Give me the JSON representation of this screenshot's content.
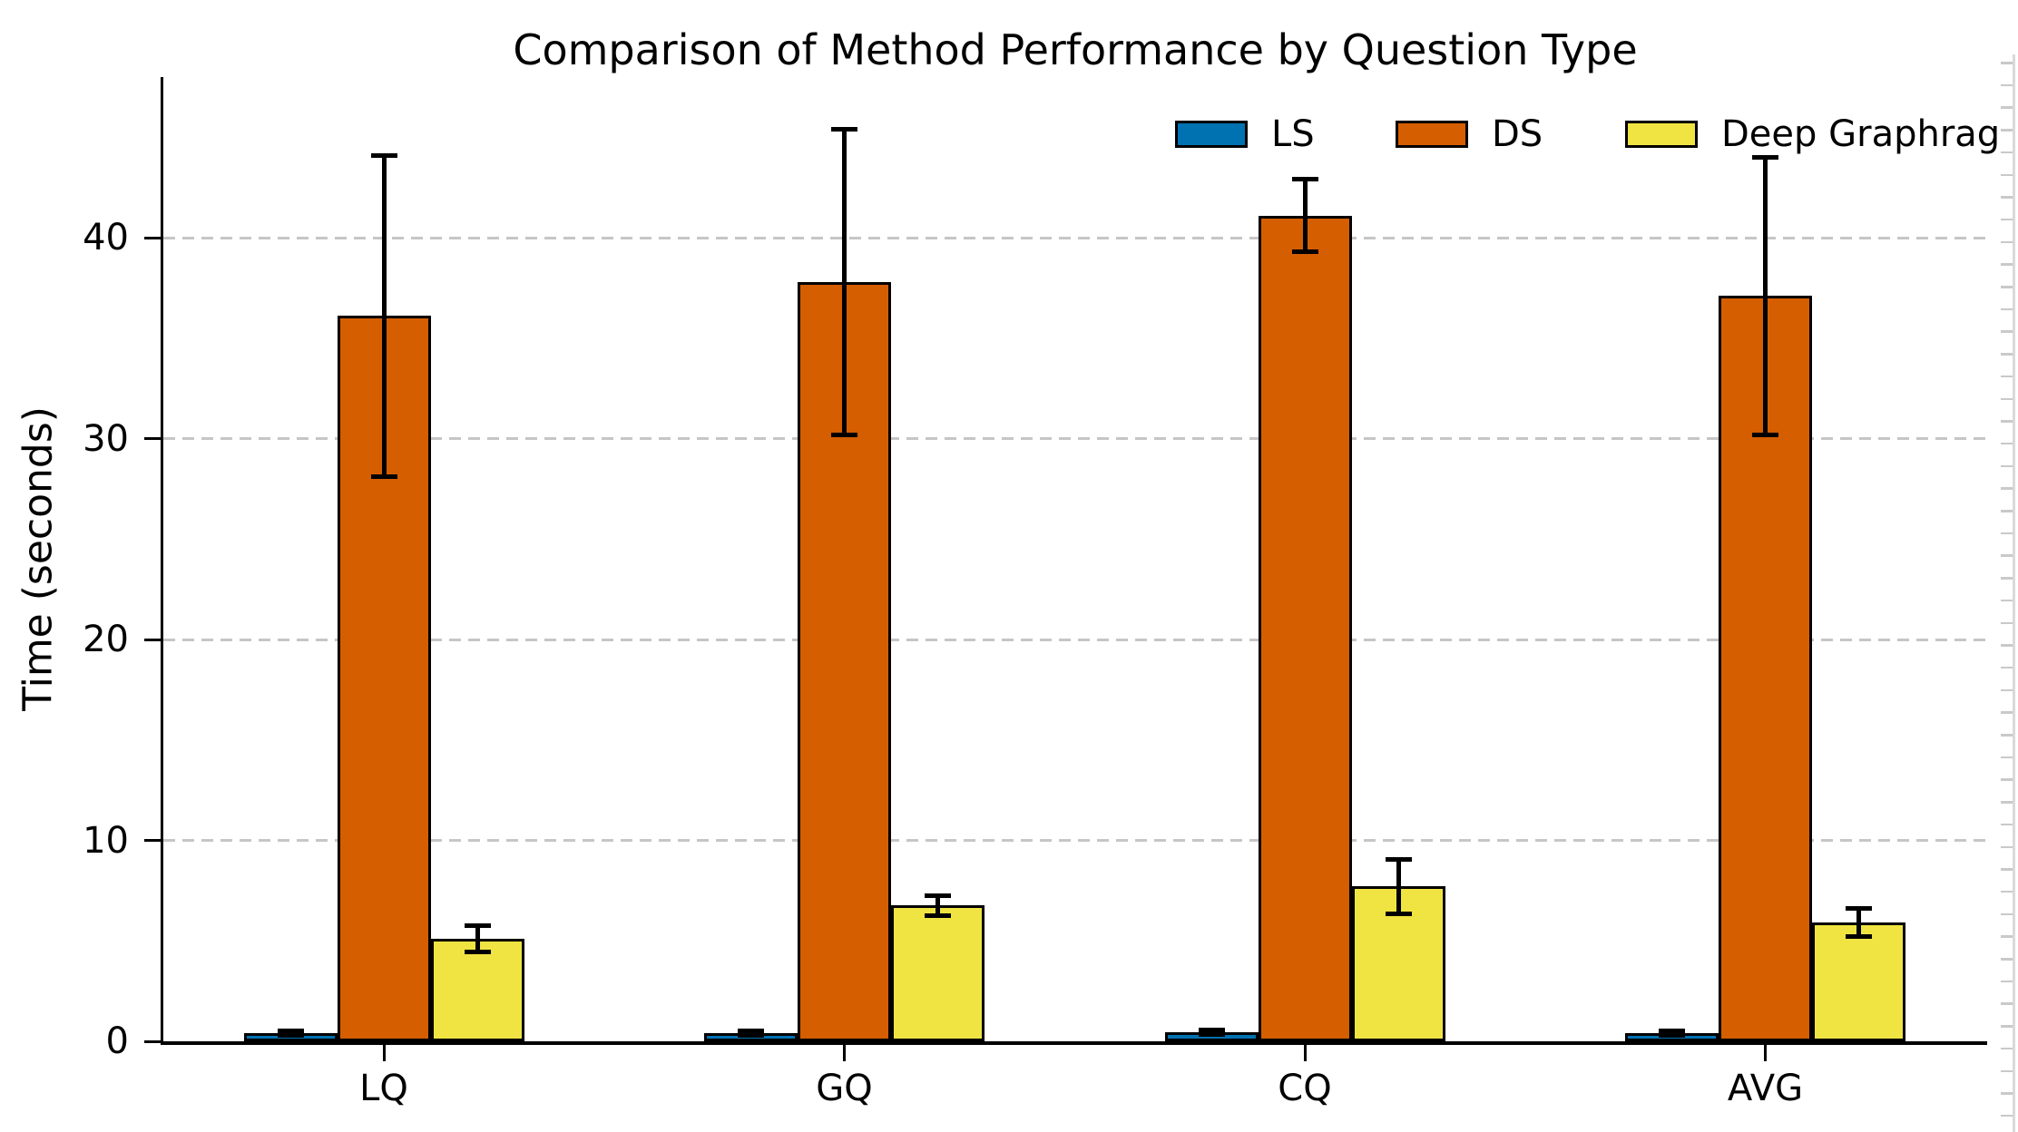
{
  "chart_data": {
    "type": "bar",
    "title": "Comparison of Method Performance by Question Type",
    "xlabel": "",
    "ylabel": "Time (seconds)",
    "categories": [
      "LQ",
      "GQ",
      "CQ",
      "AVG"
    ],
    "series": [
      {
        "name": "LS",
        "color": "#0072B2",
        "values": [
          0.4,
          0.4,
          0.45,
          0.4
        ],
        "errors": [
          0.1,
          0.1,
          0.1,
          0.1
        ]
      },
      {
        "name": "DS",
        "color": "#D55E00",
        "values": [
          36.1,
          37.8,
          41.1,
          37.1
        ],
        "errors": [
          8.0,
          7.6,
          1.8,
          6.9
        ]
      },
      {
        "name": "Deep Graphrag",
        "color": "#F0E442",
        "values": [
          5.1,
          6.75,
          7.7,
          5.9
        ],
        "errors": [
          0.65,
          0.5,
          1.35,
          0.7
        ]
      }
    ],
    "yticks": [
      0,
      10,
      20,
      30,
      40
    ],
    "ylim": [
      0,
      48
    ],
    "grid": "horizontal-dashed",
    "grid_color": "#c6c6c6",
    "error_bars": true,
    "bar_edge_color": "#000000",
    "axis_color": "#000000",
    "legend_position": "upper-right-inside",
    "legend_frame": false
  }
}
